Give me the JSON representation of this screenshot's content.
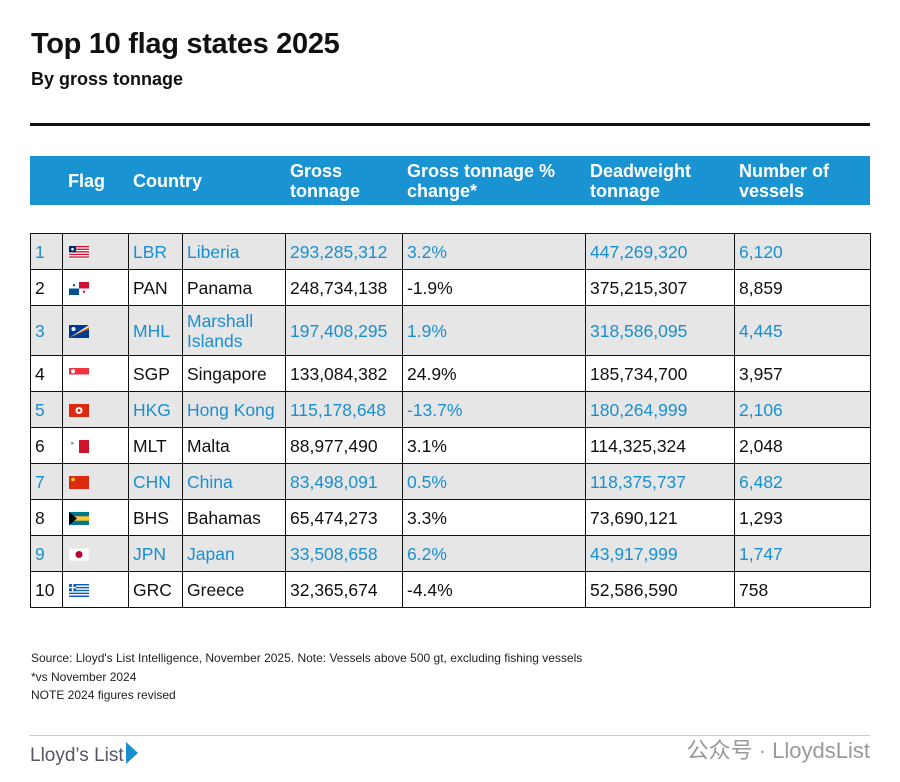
{
  "title": "Top 10 flag states 2025",
  "subtitle": "By gross tonnage",
  "headers": {
    "flag": "Flag",
    "country": "Country",
    "gt": "Gross tonnage",
    "pct": "Gross tonnage % change*",
    "dwt": "Deadweight tonnage",
    "vessels": "Number of vessels"
  },
  "rows": [
    {
      "rank": "1",
      "code": "LBR",
      "country": "Liberia",
      "gt": "293,285,312",
      "pct": "3.2%",
      "dwt": "447,269,320",
      "vessels": "6,120"
    },
    {
      "rank": "2",
      "code": "PAN",
      "country": "Panama",
      "gt": "248,734,138",
      "pct": "-1.9%",
      "dwt": "375,215,307",
      "vessels": "8,859"
    },
    {
      "rank": "3",
      "code": "MHL",
      "country": "Marshall Islands",
      "gt": "197,408,295",
      "pct": "1.9%",
      "dwt": "318,586,095",
      "vessels": "4,445"
    },
    {
      "rank": "4",
      "code": "SGP",
      "country": "Singapore",
      "gt": "133,084,382",
      "pct": "24.9%",
      "dwt": "185,734,700",
      "vessels": "3,957"
    },
    {
      "rank": "5",
      "code": "HKG",
      "country": "Hong Kong",
      "gt": "115,178,648",
      "pct": "-13.7%",
      "dwt": "180,264,999",
      "vessels": "2,106"
    },
    {
      "rank": "6",
      "code": "MLT",
      "country": "Malta",
      "gt": "88,977,490",
      "pct": "3.1%",
      "dwt": "114,325,324",
      "vessels": "2,048"
    },
    {
      "rank": "7",
      "code": "CHN",
      "country": "China",
      "gt": "83,498,091",
      "pct": "0.5%",
      "dwt": "118,375,737",
      "vessels": "6,482"
    },
    {
      "rank": "8",
      "code": "BHS",
      "country": "Bahamas",
      "gt": "65,474,273",
      "pct": "3.3%",
      "dwt": "73,690,121",
      "vessels": "1,293"
    },
    {
      "rank": "9",
      "code": "JPN",
      "country": "Japan",
      "gt": "33,508,658",
      "pct": "6.2%",
      "dwt": "43,917,999",
      "vessels": "1,747"
    },
    {
      "rank": "10",
      "code": "GRC",
      "country": "Greece",
      "gt": "32,365,674",
      "pct": "-4.4%",
      "dwt": "52,586,590",
      "vessels": "758"
    }
  ],
  "notes": [
    "Source: Lloyd's List Intelligence, November 2025. Note: Vessels above 500 gt, excluding fishing vessels",
    "*vs November 2024",
    "NOTE 2024 figures revised"
  ],
  "logo": "Lloyd’s List",
  "watermark": "公众号 · LloydsList"
}
